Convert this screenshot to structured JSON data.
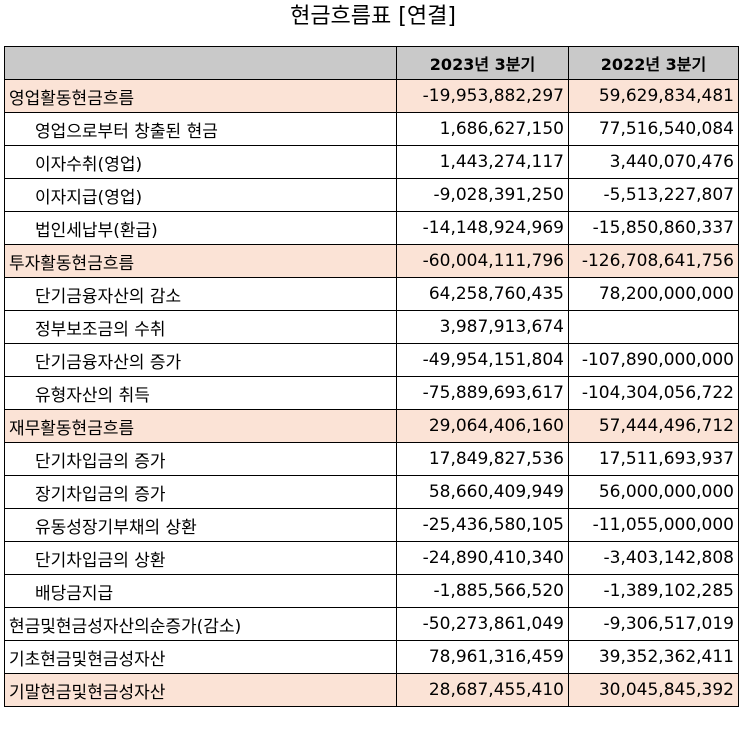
{
  "title": "현금흐름표 [연결]",
  "headers": {
    "col1": "",
    "col2": "2023년 3분기",
    "col3": "2022년 3분기"
  },
  "rows": [
    {
      "label": "영업활동현금흐름",
      "v2023": "-19,953,882,297",
      "v2022": "59,629,834,481"
    },
    {
      "label": "영업으로부터 창출된 현금",
      "v2023": "1,686,627,150",
      "v2022": "77,516,540,084"
    },
    {
      "label": "이자수취(영업)",
      "v2023": "1,443,274,117",
      "v2022": "3,440,070,476"
    },
    {
      "label": "이자지급(영업)",
      "v2023": "-9,028,391,250",
      "v2022": "-5,513,227,807"
    },
    {
      "label": "법인세납부(환급)",
      "v2023": "-14,148,924,969",
      "v2022": "-15,850,860,337"
    },
    {
      "label": "투자활동현금흐름",
      "v2023": "-60,004,111,796",
      "v2022": "-126,708,641,756"
    },
    {
      "label": "단기금융자산의 감소",
      "v2023": "64,258,760,435",
      "v2022": "78,200,000,000"
    },
    {
      "label": "정부보조금의 수취",
      "v2023": "3,987,913,674",
      "v2022": ""
    },
    {
      "label": "단기금융자산의 증가",
      "v2023": "-49,954,151,804",
      "v2022": "-107,890,000,000"
    },
    {
      "label": "유형자산의 취득",
      "v2023": "-75,889,693,617",
      "v2022": "-104,304,056,722"
    },
    {
      "label": "재무활동현금흐름",
      "v2023": "29,064,406,160",
      "v2022": "57,444,496,712"
    },
    {
      "label": "단기차입금의 증가",
      "v2023": "17,849,827,536",
      "v2022": "17,511,693,937"
    },
    {
      "label": "장기차입금의 증가",
      "v2023": "58,660,409,949",
      "v2022": "56,000,000,000"
    },
    {
      "label": "유동성장기부채의 상환",
      "v2023": "-25,436,580,105",
      "v2022": "-11,055,000,000"
    },
    {
      "label": "단기차입금의 상환",
      "v2023": "-24,890,410,340",
      "v2022": "-3,403,142,808"
    },
    {
      "label": "배당금지급",
      "v2023": "-1,885,566,520",
      "v2022": "-1,389,102,285"
    },
    {
      "label": "현금및현금성자산의순증가(감소)",
      "v2023": "-50,273,861,049",
      "v2022": "-9,306,517,019"
    },
    {
      "label": "기초현금및현금성자산",
      "v2023": "78,961,316,459",
      "v2022": "39,352,362,411"
    },
    {
      "label": "기말현금및현금성자산",
      "v2023": "28,687,455,410",
      "v2022": "30,045,845,392"
    }
  ],
  "colors": {
    "highlight": "#fbe3d6",
    "header_bg": "#c9c9c9",
    "border": "#000000"
  }
}
